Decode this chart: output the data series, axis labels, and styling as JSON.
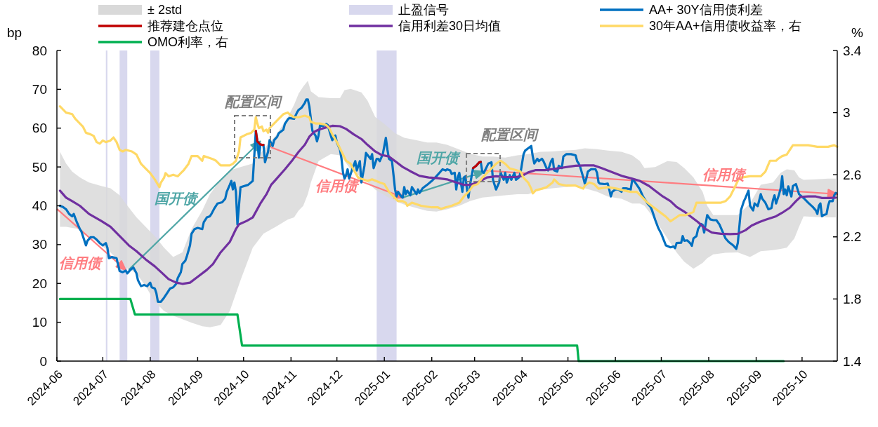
{
  "chart_data": {
    "type": "line",
    "ylabel": "bp",
    "y2label": "%",
    "legend": "top",
    "xlim": [
      "2024-06-01",
      "2025-10-24"
    ],
    "xticks": [
      {
        "value": "2024-06-01",
        "label": "2024-06"
      },
      {
        "value": "2024-07-01",
        "label": "2024-07"
      },
      {
        "value": "2024-08-01",
        "label": "2024-08"
      },
      {
        "value": "2024-09-01",
        "label": "2024-09"
      },
      {
        "value": "2024-10-01",
        "label": "2024-10"
      },
      {
        "value": "2024-11-01",
        "label": "2024-11"
      },
      {
        "value": "2024-12-01",
        "label": "2024-12"
      },
      {
        "value": "2025-01-01",
        "label": "2025-01"
      },
      {
        "value": "2025-02-01",
        "label": "2025-02"
      },
      {
        "value": "2025-03-01",
        "label": "2025-03"
      },
      {
        "value": "2025-04-01",
        "label": "2025-04"
      },
      {
        "value": "2025-05-01",
        "label": "2025-05"
      },
      {
        "value": "2025-06-01",
        "label": "2025-06"
      },
      {
        "value": "2025-07-01",
        "label": "2025-07"
      },
      {
        "value": "2025-08-01",
        "label": "2025-08"
      },
      {
        "value": "2025-09-01",
        "label": "2025-09"
      },
      {
        "value": "2025-10-01",
        "label": "2025-10"
      }
    ],
    "ylim": [
      0,
      80
    ],
    "yticks": [
      0,
      10,
      20,
      30,
      40,
      50,
      60,
      70,
      80
    ],
    "y2lim": [
      1.4,
      3.4
    ],
    "y2ticks": [
      1.4,
      1.8,
      2.2,
      2.6,
      3,
      3.4
    ],
    "bands": [
      {
        "axis": "x",
        "from": "2024-07-03",
        "to": "2024-07-04",
        "label": "止盈信号",
        "color": "#d8d8ee"
      },
      {
        "axis": "x",
        "from": "2024-07-12",
        "to": "2024-07-17",
        "color": "#d8d8ee"
      },
      {
        "axis": "x",
        "from": "2024-08-01",
        "to": "2024-08-07",
        "color": "#d8d8ee"
      },
      {
        "axis": "x",
        "from": "2024-12-27",
        "to": "2025-01-09",
        "color": "#d8d8ee"
      }
    ],
    "series": [
      {
        "name": "± 2std",
        "type": "area",
        "color": "#d9d9d9",
        "x": [
          "2024-06-03",
          "2024-06-07",
          "2024-06-11",
          "2024-06-16",
          "2024-06-22",
          "2024-06-30",
          "2024-07-06",
          "2024-07-12",
          "2024-07-16",
          "2024-07-23",
          "2024-07-29",
          "2024-08-04",
          "2024-08-10",
          "2024-08-16",
          "2024-08-22",
          "2024-08-28",
          "2024-09-04",
          "2024-09-09",
          "2024-09-16",
          "2024-09-22",
          "2024-09-29",
          "2024-10-07",
          "2024-10-14",
          "2024-10-22",
          "2024-10-30",
          "2024-11-03",
          "2024-11-06",
          "2024-11-09",
          "2024-11-12",
          "2024-11-14",
          "2024-11-19",
          "2024-11-27",
          "2024-12-03",
          "2024-12-06",
          "2024-12-10",
          "2024-12-17",
          "2024-12-21",
          "2024-12-26",
          "2025-01-01",
          "2025-01-08",
          "2025-01-14",
          "2025-01-22",
          "2025-01-29",
          "2025-02-04",
          "2025-02-11",
          "2025-02-19",
          "2025-02-26",
          "2025-03-06",
          "2025-03-13",
          "2025-03-21",
          "2025-03-29",
          "2025-04-05",
          "2025-04-13",
          "2025-04-21",
          "2025-04-28",
          "2025-05-06",
          "2025-05-12",
          "2025-05-20",
          "2025-05-27",
          "2025-06-05",
          "2025-06-12",
          "2025-06-17",
          "2025-06-20",
          "2025-06-27",
          "2025-07-05",
          "2025-07-11",
          "2025-07-16",
          "2025-07-22",
          "2025-07-28",
          "2025-07-31",
          "2025-08-04",
          "2025-08-12",
          "2025-08-20",
          "2025-08-28",
          "2025-09-04",
          "2025-09-12",
          "2025-09-17",
          "2025-09-21",
          "2025-09-26",
          "2025-09-29",
          "2025-10-02",
          "2025-10-10",
          "2025-10-18",
          "2025-10-23"
        ],
        "values": [
          null,
          null,
          null,
          null,
          null,
          null,
          null,
          null,
          null,
          null,
          null,
          null,
          null,
          null,
          null,
          null,
          null,
          null,
          null,
          null,
          null,
          null,
          null,
          null,
          null,
          null,
          null,
          null,
          null,
          null,
          null,
          null,
          null,
          null,
          null,
          null,
          null,
          null,
          null,
          null,
          null,
          null,
          null,
          null,
          null,
          null,
          null,
          null,
          null,
          null,
          null,
          null,
          null,
          null,
          null,
          null,
          null,
          null,
          null,
          null,
          null,
          null,
          null,
          null,
          null,
          null,
          null,
          null,
          null,
          null,
          null,
          null,
          null,
          null,
          null,
          null,
          null,
          null,
          null,
          null,
          null,
          null,
          null,
          null
        ],
        "upper": [
          53.9,
          50.9,
          48.8,
          47.3,
          46.0,
          45.1,
          44.5,
          42.7,
          40.6,
          37.0,
          34.6,
          32.2,
          29.2,
          26.8,
          28.0,
          34.0,
          38.8,
          43.0,
          46.7,
          49.1,
          50.0,
          50.9,
          54.5,
          58.1,
          62.9,
          66.0,
          68.9,
          70.7,
          72.2,
          69.5,
          68.0,
          67.7,
          67.7,
          69.8,
          70.1,
          69.2,
          67.1,
          62.9,
          61.1,
          58.7,
          57.5,
          56.9,
          56.3,
          56.3,
          55.7,
          54.5,
          53.4,
          52.7,
          52.7,
          52.4,
          53.0,
          53.3,
          53.9,
          54.0,
          54.2,
          54.4,
          54.8,
          54.6,
          54.2,
          53.9,
          53.0,
          51.5,
          49.7,
          50.0,
          51.5,
          51.3,
          49.7,
          47.3,
          43.6,
          40.0,
          37.6,
          37.6,
          37.6,
          40.6,
          45.4,
          46.0,
          48.5,
          49.4,
          49.1,
          47.3,
          46.7,
          46.8,
          47.0,
          47.0
        ],
        "lower": [
          34.6,
          34.6,
          34.3,
          34.0,
          32.2,
          29.8,
          28.0,
          25.6,
          24.1,
          22.6,
          19.3,
          15.3,
          12.9,
          11.7,
          10.8,
          9.9,
          9.0,
          8.7,
          9.3,
          12.9,
          20.8,
          29.2,
          32.8,
          34.6,
          36.5,
          37.0,
          38.8,
          40.0,
          43.0,
          46.0,
          51.5,
          53.3,
          53.0,
          51.5,
          49.4,
          47.3,
          46.0,
          44.2,
          42.7,
          41.2,
          40.3,
          39.4,
          38.7,
          38.5,
          39.1,
          40.0,
          41.2,
          42.1,
          42.4,
          42.7,
          43.0,
          43.0,
          44.1,
          44.5,
          44.8,
          45.0,
          44.5,
          43.6,
          42.4,
          41.8,
          40.6,
          40.6,
          40.0,
          36.4,
          31.6,
          28.0,
          25.6,
          23.8,
          25.3,
          26.5,
          27.5,
          27.9,
          28.0,
          26.8,
          28.3,
          28.6,
          28.9,
          29.2,
          31.6,
          34.6,
          37.3,
          37.1,
          37.0,
          37.0
        ]
      },
      {
        "name": "AA+ 30Y信用债利差",
        "color": "#0070c0",
        "x": [
          "2024-06-03",
          "2024-06-05",
          "2024-06-07",
          "2024-06-09",
          "2024-06-11",
          "2024-06-12",
          "2024-06-14",
          "2024-06-16",
          "2024-06-17",
          "2024-06-20",
          "2024-06-21",
          "2024-06-23",
          "2024-06-25",
          "2024-06-27",
          "2024-06-29",
          "2024-07-01",
          "2024-07-03",
          "2024-07-04",
          "2024-07-05",
          "2024-07-07",
          "2024-07-10",
          "2024-07-12",
          "2024-07-14",
          "2024-07-16",
          "2024-07-17",
          "2024-07-19",
          "2024-07-21",
          "2024-07-23",
          "2024-07-24",
          "2024-07-26",
          "2024-07-28",
          "2024-07-30",
          "2024-08-01",
          "2024-08-02",
          "2024-08-04",
          "2024-08-05",
          "2024-08-06",
          "2024-08-08",
          "2024-08-10",
          "2024-08-12",
          "2024-08-14",
          "2024-08-16",
          "2024-08-18",
          "2024-08-19",
          "2024-08-21",
          "2024-08-22",
          "2024-08-24",
          "2024-08-25",
          "2024-08-27",
          "2024-08-28",
          "2024-08-30",
          "2024-09-01",
          "2024-09-04",
          "2024-09-05",
          "2024-09-07",
          "2024-09-09",
          "2024-09-10",
          "2024-09-12",
          "2024-09-14",
          "2024-09-17",
          "2024-09-19",
          "2024-09-20",
          "2024-09-22",
          "2024-09-23",
          "2024-09-24",
          "2024-09-25",
          "2024-09-26",
          "2024-09-27",
          "2024-09-29",
          "2024-10-04",
          "2024-10-07",
          "2024-10-09",
          "2024-10-10",
          "2024-10-11",
          "2024-10-12",
          "2024-10-13",
          "2024-10-14",
          "2024-10-15",
          "2024-10-17",
          "2024-10-18",
          "2024-10-20",
          "2024-10-21",
          "2024-10-23",
          "2024-10-24",
          "2024-10-27",
          "2024-10-28",
          "2024-10-30",
          "2024-10-31",
          "2024-11-03",
          "2024-11-05",
          "2024-11-06",
          "2024-11-08",
          "2024-11-10",
          "2024-11-11",
          "2024-11-12",
          "2024-11-13",
          "2024-11-14",
          "2024-11-15",
          "2024-11-17",
          "2024-11-18",
          "2024-11-19",
          "2024-11-20",
          "2024-11-22",
          "2024-11-24",
          "2024-11-25",
          "2024-11-27",
          "2024-11-28",
          "2024-11-30",
          "2024-12-01",
          "2024-12-03",
          "2024-12-04",
          "2024-12-05",
          "2024-12-06",
          "2024-12-07",
          "2024-12-08",
          "2024-12-09",
          "2024-12-11",
          "2024-12-13",
          "2024-12-14",
          "2024-12-16",
          "2024-12-17",
          "2024-12-19",
          "2024-12-20",
          "2024-12-23",
          "2024-12-24",
          "2024-12-25",
          "2024-12-27",
          "2024-12-28",
          "2024-12-29",
          "2024-12-31",
          "2025-01-02",
          "2025-01-03",
          "2025-01-04",
          "2025-01-06",
          "2025-01-07",
          "2025-01-08",
          "2025-01-09",
          "2025-01-10",
          "2025-01-12",
          "2025-01-13",
          "2025-01-14",
          "2025-01-15",
          "2025-01-16",
          "2025-01-18",
          "2025-01-19",
          "2025-01-20",
          "2025-01-22",
          "2025-01-23",
          "2025-01-24",
          "2025-01-26",
          "2025-01-29",
          "2025-02-01",
          "2025-02-04",
          "2025-02-06",
          "2025-02-08",
          "2025-02-10",
          "2025-02-11",
          "2025-02-13",
          "2025-02-14",
          "2025-02-16",
          "2025-02-17",
          "2025-02-18",
          "2025-02-19",
          "2025-02-20",
          "2025-02-21",
          "2025-02-22",
          "2025-02-23",
          "2025-02-24",
          "2025-02-25",
          "2025-02-26",
          "2025-02-28",
          "2025-03-02",
          "2025-03-04",
          "2025-03-05",
          "2025-03-06",
          "2025-03-07",
          "2025-03-10",
          "2025-03-12",
          "2025-03-13",
          "2025-03-15",
          "2025-03-17",
          "2025-03-18",
          "2025-03-20",
          "2025-03-21",
          "2025-03-22",
          "2025-03-24",
          "2025-03-25",
          "2025-03-27",
          "2025-03-28",
          "2025-03-30",
          "2025-03-31",
          "2025-04-02",
          "2025-04-03",
          "2025-04-05",
          "2025-04-07",
          "2025-04-08",
          "2025-04-09",
          "2025-04-11",
          "2025-04-12",
          "2025-04-14",
          "2025-04-15",
          "2025-04-17",
          "2025-04-18",
          "2025-04-20",
          "2025-04-21",
          "2025-04-22",
          "2025-04-24",
          "2025-04-25",
          "2025-04-27",
          "2025-04-28",
          "2025-04-30",
          "2025-05-03",
          "2025-05-06",
          "2025-05-07",
          "2025-05-08",
          "2025-05-09",
          "2025-05-11",
          "2025-05-12",
          "2025-05-13",
          "2025-05-14",
          "2025-05-16",
          "2025-05-19",
          "2025-05-20",
          "2025-05-21",
          "2025-05-22",
          "2025-05-25",
          "2025-05-27",
          "2025-05-28",
          "2025-05-29",
          "2025-05-30",
          "2025-06-01",
          "2025-06-03",
          "2025-06-05",
          "2025-06-06",
          "2025-06-08",
          "2025-06-11",
          "2025-06-12",
          "2025-06-13",
          "2025-06-15",
          "2025-06-17",
          "2025-06-19",
          "2025-06-22",
          "2025-06-24",
          "2025-06-25",
          "2025-06-27",
          "2025-06-29",
          "2025-07-01",
          "2025-07-04",
          "2025-07-07",
          "2025-07-09",
          "2025-07-10",
          "2025-07-11",
          "2025-07-14",
          "2025-07-15",
          "2025-07-16",
          "2025-07-18",
          "2025-07-20",
          "2025-07-21",
          "2025-07-22",
          "2025-07-24",
          "2025-07-25",
          "2025-07-27",
          "2025-07-28",
          "2025-07-29",
          "2025-07-31",
          "2025-08-02",
          "2025-08-04",
          "2025-08-06",
          "2025-08-08",
          "2025-08-10",
          "2025-08-12",
          "2025-08-14",
          "2025-08-17",
          "2025-08-19",
          "2025-08-20",
          "2025-08-21",
          "2025-08-22",
          "2025-08-24",
          "2025-08-25",
          "2025-08-27",
          "2025-08-28",
          "2025-08-30",
          "2025-08-31",
          "2025-09-02",
          "2025-09-03",
          "2025-09-04",
          "2025-09-05",
          "2025-09-07",
          "2025-09-09",
          "2025-09-11",
          "2025-09-12",
          "2025-09-13",
          "2025-09-14",
          "2025-09-16",
          "2025-09-17",
          "2025-09-18",
          "2025-09-19",
          "2025-09-20",
          "2025-09-21",
          "2025-09-22",
          "2025-09-24",
          "2025-09-25",
          "2025-09-27",
          "2025-09-29",
          "2025-10-02",
          "2025-10-05",
          "2025-10-08",
          "2025-10-10",
          "2025-10-11",
          "2025-10-12",
          "2025-10-13",
          "2025-10-14",
          "2025-10-15",
          "2025-10-17",
          "2025-10-18",
          "2025-10-19",
          "2025-10-21",
          "2025-10-22",
          "2025-10-23"
        ],
        "values": [
          40.0,
          39.7,
          39.1,
          37.9,
          37.3,
          37.9,
          35.8,
          34.0,
          33.4,
          29.8,
          31.0,
          31.9,
          31.9,
          31.3,
          30.4,
          29.8,
          30.4,
          29.2,
          26.5,
          26.8,
          26.5,
          23.2,
          22.9,
          23.3,
          22.6,
          23.5,
          24.1,
          22.6,
          20.8,
          19.3,
          19.6,
          19.3,
          20.2,
          19.0,
          18.7,
          17.5,
          15.3,
          15.3,
          16.3,
          17.5,
          18.7,
          19.0,
          19.9,
          21.4,
          22.9,
          25.0,
          25.9,
          27.1,
          29.8,
          32.8,
          34.0,
          34.3,
          34.0,
          35.8,
          37.0,
          37.3,
          37.9,
          39.4,
          40.6,
          40.9,
          41.8,
          43.6,
          45.4,
          46.4,
          44.2,
          46.0,
          43.6,
          35.2,
          44.8,
          45.4,
          46.4,
          59.3,
          56.6,
          52.4,
          55.8,
          55.7,
          55.7,
          51.2,
          53.9,
          56.9,
          55.4,
          56.9,
          57.8,
          58.7,
          59.6,
          61.1,
          62.3,
          62.6,
          62.4,
          64.1,
          64.7,
          65.3,
          66.5,
          67.4,
          67.4,
          65.6,
          62.3,
          59.3,
          58.1,
          56.6,
          58.1,
          60.8,
          60.5,
          61.1,
          60.8,
          58.1,
          56.9,
          58.1,
          56.3,
          54.5,
          52.1,
          48.5,
          47.0,
          47.9,
          49.4,
          47.0,
          49.4,
          51.5,
          49.1,
          51.5,
          46.0,
          50.3,
          53.6,
          52.1,
          53.3,
          49.7,
          52.1,
          52.1,
          51.5,
          53.3,
          57.5,
          54.5,
          52.1,
          51.5,
          47.9,
          44.2,
          42.4,
          43.6,
          42.4,
          42.1,
          44.8,
          43.0,
          43.9,
          42.7,
          44.8,
          44.2,
          43.0,
          44.2,
          43.3,
          44.5,
          45.4,
          46.4,
          47.6,
          48.5,
          49.4,
          49.1,
          49.4,
          49.1,
          48.2,
          48.5,
          44.2,
          47.3,
          48.5,
          46.0,
          43.6,
          47.3,
          47.6,
          44.2,
          42.1,
          45.4,
          49.7,
          50.3,
          51.2,
          51.3,
          48.8,
          48.5,
          50.9,
          51.2,
          46.7,
          44.2,
          46.0,
          48.5,
          46.7,
          48.5,
          46.0,
          47.9,
          46.7,
          48.5,
          46.7,
          47.3,
          48.5,
          53.3,
          54.2,
          54.8,
          55.4,
          52.7,
          50.9,
          52.1,
          51.5,
          52.1,
          51.5,
          49.7,
          49.1,
          51.5,
          52.1,
          49.1,
          48.8,
          50.3,
          49.7,
          52.7,
          53.3,
          53.3,
          53.0,
          51.5,
          50.9,
          50.0,
          47.3,
          45.7,
          47.0,
          48.8,
          49.4,
          49.4,
          48.5,
          46.0,
          45.7,
          45.6,
          45.7,
          44.2,
          42.4,
          43.6,
          44.2,
          44.2,
          43.6,
          44.5,
          44.5,
          44.2,
          46.7,
          46.5,
          45.4,
          44.2,
          42.4,
          40.6,
          39.7,
          38.8,
          36.4,
          34.3,
          32.8,
          29.8,
          29.3,
          29.5,
          29.1,
          30.4,
          30.5,
          32.2,
          31.0,
          31.1,
          30.3,
          29.7,
          31.6,
          32.2,
          34.0,
          35.3,
          35.1,
          33.1,
          37.6,
          36.5,
          36.3,
          36.3,
          35.2,
          33.4,
          31.6,
          30.7,
          29.8,
          28.9,
          30.4,
          34.6,
          38.8,
          41.2,
          42.0,
          43.9,
          40.0,
          38.8,
          40.6,
          39.9,
          41.4,
          43.0,
          41.8,
          40.8,
          39.1,
          39.4,
          41.5,
          42.7,
          40.6,
          43.0,
          44.5,
          47.6,
          43.0,
          44.2,
          42.7,
          45.0,
          42.4,
          45.1,
          45.6,
          43.0,
          42.0,
          40.8,
          39.7,
          38.8,
          37.9,
          40.0,
          40.6,
          37.3,
          37.6,
          37.9,
          40.0,
          41.2,
          41.2,
          42.7,
          43.3
        ]
      },
      {
        "name": "推荐建仓点位",
        "color": "#c00000",
        "x": [
          "2024-10-09",
          "2024-10-10",
          "2024-10-12",
          "2024-10-13",
          "2024-10-14"
        ],
        "values": [
          59.3,
          56.6,
          55.8,
          55.7,
          55.7
        ]
      },
      {
        "color": "#c00000",
        "x": [
          "2025-02-28",
          "2025-03-02",
          "2025-03-04",
          "2025-03-05"
        ],
        "values": [
          49.7,
          50.3,
          51.2,
          51.3
        ]
      },
      {
        "name": "信用利差30日均值",
        "color": "#7030a0",
        "x": [
          "2024-06-03",
          "2024-06-07",
          "2024-06-11",
          "2024-06-16",
          "2024-06-22",
          "2024-06-30",
          "2024-07-06",
          "2024-07-12",
          "2024-07-18",
          "2024-07-23",
          "2024-07-29",
          "2024-08-04",
          "2024-08-09",
          "2024-08-13",
          "2024-08-18",
          "2024-08-22",
          "2024-08-27",
          "2024-08-31",
          "2024-09-07",
          "2024-09-11",
          "2024-09-16",
          "2024-09-22",
          "2024-09-26",
          "2024-09-28",
          "2024-10-03",
          "2024-10-07",
          "2024-10-12",
          "2024-10-16",
          "2024-10-19",
          "2024-10-22",
          "2024-10-28",
          "2024-11-02",
          "2024-11-06",
          "2024-11-10",
          "2024-11-13",
          "2024-11-16",
          "2024-11-19",
          "2024-11-24",
          "2024-11-28",
          "2024-12-03",
          "2024-12-07",
          "2024-12-12",
          "2024-12-17",
          "2024-12-21",
          "2024-12-26",
          "2024-12-30",
          "2025-01-04",
          "2025-01-08",
          "2025-01-13",
          "2025-01-18",
          "2025-01-24",
          "2025-01-30",
          "2025-02-05",
          "2025-02-11",
          "2025-02-17",
          "2025-02-22",
          "2025-02-26",
          "2025-03-03",
          "2025-03-09",
          "2025-03-15",
          "2025-03-21",
          "2025-03-28",
          "2025-04-01",
          "2025-04-05",
          "2025-04-10",
          "2025-04-16",
          "2025-04-22",
          "2025-04-27",
          "2025-05-02",
          "2025-05-06",
          "2025-05-12",
          "2025-05-18",
          "2025-05-23",
          "2025-05-31",
          "2025-06-06",
          "2025-06-12",
          "2025-06-17",
          "2025-06-23",
          "2025-06-27",
          "2025-07-02",
          "2025-07-07",
          "2025-07-11",
          "2025-07-16",
          "2025-07-20",
          "2025-07-25",
          "2025-07-30",
          "2025-08-03",
          "2025-08-09",
          "2025-08-15",
          "2025-08-20",
          "2025-08-25",
          "2025-08-29",
          "2025-09-03",
          "2025-09-07",
          "2025-09-14",
          "2025-09-18",
          "2025-09-23",
          "2025-09-27",
          "2025-09-30",
          "2025-10-05",
          "2025-10-10",
          "2025-10-14",
          "2025-10-19",
          "2025-10-23"
        ],
        "values": [
          43.9,
          42.1,
          41.2,
          40.0,
          37.9,
          36.1,
          34.6,
          32.2,
          29.8,
          28.3,
          26.2,
          24.4,
          22.6,
          21.1,
          20.2,
          19.9,
          20.2,
          21.4,
          23.5,
          25.0,
          28.0,
          30.7,
          34.0,
          35.2,
          36.1,
          37.0,
          40.6,
          43.0,
          45.4,
          46.7,
          49.4,
          51.8,
          53.9,
          55.7,
          57.8,
          59.0,
          59.6,
          60.2,
          60.6,
          60.5,
          59.8,
          58.4,
          57.2,
          55.7,
          54.0,
          53.1,
          52.7,
          51.5,
          50.0,
          48.9,
          47.7,
          47.3,
          47.1,
          46.8,
          46.0,
          45.4,
          45.4,
          46.0,
          47.3,
          47.6,
          47.4,
          47.4,
          47.7,
          48.6,
          49.2,
          49.2,
          49.5,
          49.8,
          50.1,
          50.3,
          50.4,
          50.4,
          49.7,
          48.5,
          47.6,
          47.0,
          46.4,
          45.1,
          43.9,
          42.4,
          41.2,
          39.7,
          38.5,
          37.3,
          35.8,
          34.0,
          33.1,
          32.8,
          32.7,
          32.8,
          33.7,
          34.9,
          35.8,
          36.4,
          37.3,
          38.2,
          39.5,
          41.2,
          42.3,
          42.4,
          42.4,
          42.0,
          42.0,
          42.1
        ]
      },
      {
        "name": "30年AA+信用债收益率，右",
        "color": "#ffd966",
        "axis": "y2",
        "x": [
          "2024-06-03",
          "2024-06-05",
          "2024-06-07",
          "2024-06-11",
          "2024-06-13",
          "2024-06-16",
          "2024-06-18",
          "2024-06-20",
          "2024-06-23",
          "2024-06-25",
          "2024-06-27",
          "2024-06-29",
          "2024-07-01",
          "2024-07-03",
          "2024-07-06",
          "2024-07-08",
          "2024-07-10",
          "2024-07-12",
          "2024-07-14",
          "2024-07-16",
          "2024-07-20",
          "2024-07-23",
          "2024-07-26",
          "2024-07-29",
          "2024-08-01",
          "2024-08-04",
          "2024-08-07",
          "2024-08-08",
          "2024-08-10",
          "2024-08-11",
          "2024-08-13",
          "2024-08-16",
          "2024-08-19",
          "2024-08-21",
          "2024-08-23",
          "2024-08-26",
          "2024-08-28",
          "2024-08-30",
          "2024-09-01",
          "2024-09-04",
          "2024-09-05",
          "2024-09-08",
          "2024-09-11",
          "2024-09-13",
          "2024-09-16",
          "2024-09-19",
          "2024-09-22",
          "2024-09-24",
          "2024-09-26",
          "2024-09-28",
          "2024-09-29",
          "2024-10-03",
          "2024-10-06",
          "2024-10-08",
          "2024-10-09",
          "2024-10-10",
          "2024-10-11",
          "2024-10-13",
          "2024-10-14",
          "2024-10-16",
          "2024-10-17",
          "2024-10-18",
          "2024-10-21",
          "2024-10-24",
          "2024-10-27",
          "2024-10-30",
          "2024-10-31",
          "2024-11-03",
          "2024-11-06",
          "2024-11-10",
          "2024-11-13",
          "2024-11-14",
          "2024-11-17",
          "2024-11-20",
          "2024-11-24",
          "2024-11-26",
          "2024-11-28",
          "2024-12-01",
          "2024-12-04",
          "2024-12-07",
          "2024-12-10",
          "2024-12-12",
          "2024-12-15",
          "2024-12-18",
          "2024-12-21",
          "2024-12-24",
          "2024-12-29",
          "2025-01-01",
          "2025-01-04",
          "2025-01-07",
          "2025-01-10",
          "2025-01-13",
          "2025-01-15",
          "2025-01-16",
          "2025-01-19",
          "2025-01-22",
          "2025-01-25",
          "2025-02-01",
          "2025-02-05",
          "2025-02-07",
          "2025-02-10",
          "2025-02-14",
          "2025-02-19",
          "2025-02-22",
          "2025-02-25",
          "2025-02-28",
          "2025-03-03",
          "2025-03-06",
          "2025-03-09",
          "2025-03-12",
          "2025-03-15",
          "2025-03-18",
          "2025-03-21",
          "2025-03-24",
          "2025-03-28",
          "2025-03-31",
          "2025-04-01",
          "2025-04-02",
          "2025-04-05",
          "2025-04-07",
          "2025-04-08",
          "2025-04-10",
          "2025-04-14",
          "2025-04-17",
          "2025-04-21",
          "2025-04-22",
          "2025-04-25",
          "2025-04-30",
          "2025-05-06",
          "2025-05-11",
          "2025-05-12",
          "2025-05-15",
          "2025-05-18",
          "2025-05-21",
          "2025-05-27",
          "2025-06-02",
          "2025-06-06",
          "2025-06-11",
          "2025-06-15",
          "2025-06-18",
          "2025-06-22",
          "2025-06-26",
          "2025-06-30",
          "2025-07-04",
          "2025-07-07",
          "2025-07-10",
          "2025-07-13",
          "2025-07-17",
          "2025-07-22",
          "2025-07-24",
          "2025-07-27",
          "2025-07-31",
          "2025-08-04",
          "2025-08-09",
          "2025-08-12",
          "2025-08-15",
          "2025-08-18",
          "2025-08-21",
          "2025-08-28",
          "2025-09-04",
          "2025-09-07",
          "2025-09-10",
          "2025-09-14",
          "2025-09-15",
          "2025-09-18",
          "2025-09-21",
          "2025-09-25",
          "2025-09-29",
          "2025-10-05",
          "2025-10-11",
          "2025-10-14",
          "2025-10-18",
          "2025-10-22",
          "2025-10-24"
        ],
        "values": [
          3.04,
          3.02,
          3.0,
          2.99,
          2.96,
          2.93,
          2.91,
          2.87,
          2.86,
          2.85,
          2.81,
          2.8,
          2.82,
          2.81,
          2.82,
          2.84,
          2.81,
          2.76,
          2.75,
          2.76,
          2.75,
          2.73,
          2.67,
          2.64,
          2.61,
          2.57,
          2.52,
          2.55,
          2.58,
          2.61,
          2.59,
          2.6,
          2.59,
          2.61,
          2.63,
          2.67,
          2.72,
          2.72,
          2.72,
          2.69,
          2.72,
          2.71,
          2.7,
          2.69,
          2.66,
          2.66,
          2.66,
          2.67,
          2.69,
          2.75,
          2.84,
          2.86,
          2.87,
          2.89,
          2.97,
          2.93,
          2.9,
          2.91,
          2.88,
          2.89,
          2.87,
          2.9,
          2.93,
          2.96,
          2.99,
          3.0,
          2.99,
          2.97,
          2.97,
          2.98,
          2.97,
          2.94,
          2.93,
          2.93,
          2.92,
          2.9,
          2.86,
          2.81,
          2.75,
          2.69,
          2.67,
          2.63,
          2.58,
          2.57,
          2.56,
          2.57,
          2.55,
          2.54,
          2.49,
          2.46,
          2.43,
          2.43,
          2.42,
          2.4,
          2.42,
          2.41,
          2.4,
          2.39,
          2.39,
          2.38,
          2.39,
          2.4,
          2.42,
          2.46,
          2.49,
          2.53,
          2.54,
          2.58,
          2.61,
          2.64,
          2.67,
          2.69,
          2.67,
          2.64,
          2.63,
          2.62,
          2.6,
          2.58,
          2.55,
          2.51,
          2.48,
          2.5,
          2.51,
          2.52,
          2.55,
          2.57,
          2.54,
          2.53,
          2.53,
          2.51,
          2.53,
          2.55,
          2.54,
          2.51,
          2.52,
          2.51,
          2.5,
          2.49,
          2.49,
          2.46,
          2.42,
          2.39,
          2.36,
          2.33,
          2.3,
          2.32,
          2.34,
          2.34,
          2.36,
          2.42,
          2.42,
          2.42,
          2.42,
          2.42,
          2.43,
          2.46,
          2.52,
          2.58,
          2.59,
          2.59,
          2.62,
          2.69,
          2.69,
          2.7,
          2.72,
          2.73,
          2.79,
          2.79,
          2.79,
          2.78,
          2.78,
          2.78,
          2.79,
          2.78
        ]
      },
      {
        "name": "OMO利率，右",
        "color": "#00b050",
        "axis": "y2",
        "x": [
          "2024-06-03",
          "2024-07-19",
          "2024-07-22",
          "2024-09-27",
          "2024-09-30",
          "2025-05-07",
          "2025-05-08",
          "2025-09-19"
        ],
        "values": [
          1.8,
          1.8,
          1.7,
          1.7,
          1.5,
          1.5,
          1.4,
          1.4
        ]
      }
    ],
    "annotations": [
      "信用债",
      "国开债",
      "配置区间",
      "信用债",
      "国开债",
      "配置区间",
      "信用债"
    ]
  }
}
